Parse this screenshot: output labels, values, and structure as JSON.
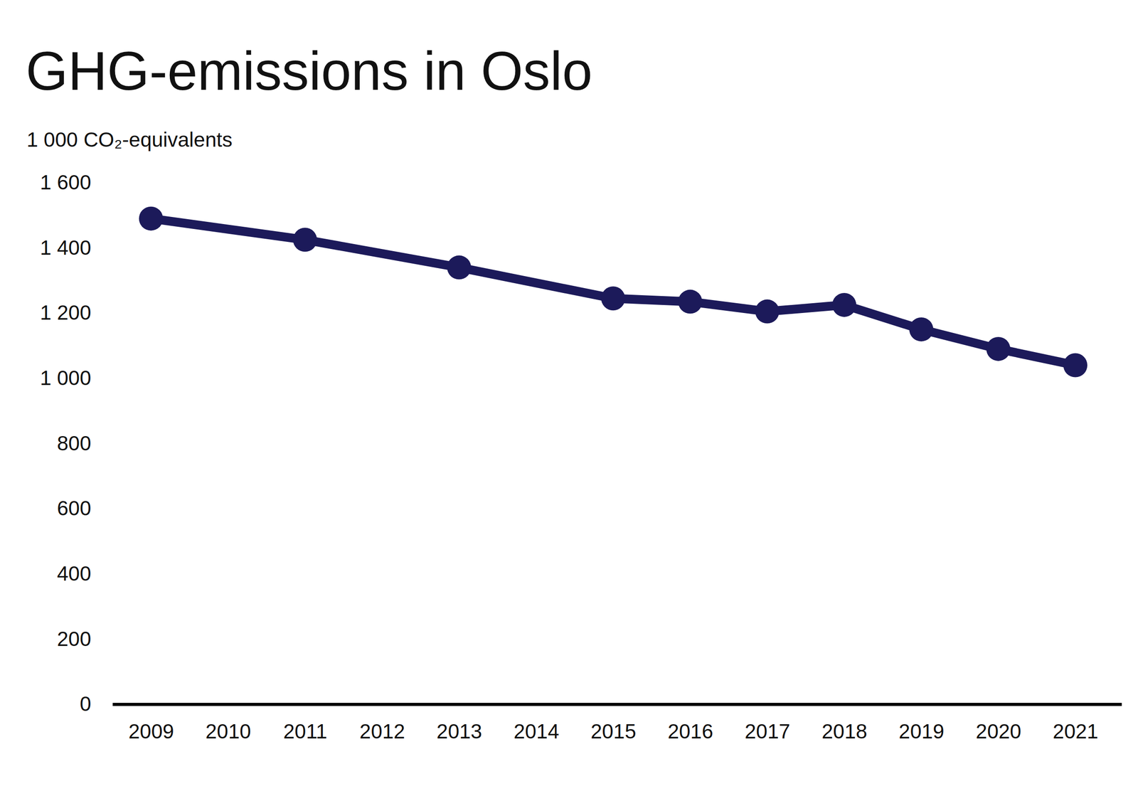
{
  "chart_data": {
    "type": "line",
    "title": "GHG-emissions in Oslo",
    "y_label": "1 000 CO₂-equivalents",
    "x": [
      2009,
      2011,
      2013,
      2015,
      2016,
      2017,
      2018,
      2019,
      2020,
      2021
    ],
    "values": [
      1490,
      1425,
      1340,
      1245,
      1235,
      1205,
      1225,
      1150,
      1090,
      1040
    ],
    "color": "#1c1a5a",
    "marker": "circle",
    "grid": false,
    "xlim": [
      2008.5,
      2021.6
    ],
    "xticks": [
      2009,
      2010,
      2011,
      2012,
      2013,
      2014,
      2015,
      2016,
      2017,
      2018,
      2019,
      2020,
      2021
    ],
    "ylim": [
      0,
      1600
    ],
    "yticks": [
      0,
      200,
      400,
      600,
      800,
      {
        "value": 1000,
        "label": "1 000"
      },
      {
        "value": 1200,
        "label": "1 200"
      },
      {
        "value": 1400,
        "label": "1 400"
      },
      {
        "value": 1600,
        "label": "1 600"
      }
    ]
  }
}
